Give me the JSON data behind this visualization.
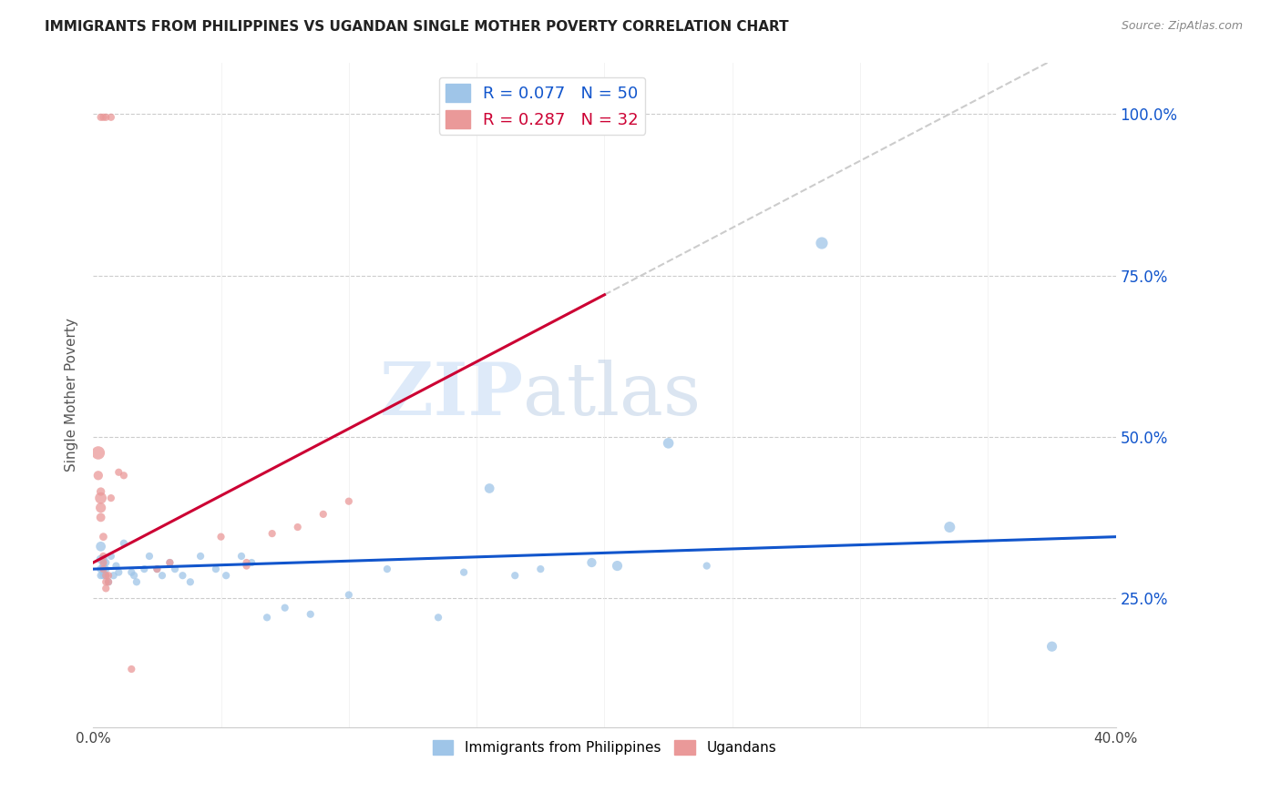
{
  "title": "IMMIGRANTS FROM PHILIPPINES VS UGANDAN SINGLE MOTHER POVERTY CORRELATION CHART",
  "source": "Source: ZipAtlas.com",
  "ylabel": "Single Mother Poverty",
  "ytick_labels": [
    "100.0%",
    "75.0%",
    "50.0%",
    "25.0%"
  ],
  "ytick_values": [
    1.0,
    0.75,
    0.5,
    0.25
  ],
  "xlim": [
    0.0,
    0.4
  ],
  "ylim": [
    0.05,
    1.08
  ],
  "blue_color": "#9fc5e8",
  "pink_color": "#ea9999",
  "blue_line_color": "#1155cc",
  "pink_line_color": "#cc0033",
  "watermark_zip": "ZIP",
  "watermark_atlas": "atlas",
  "legend_blue_r": "R = 0.077",
  "legend_blue_n": "N = 50",
  "legend_pink_r": "R = 0.287",
  "legend_pink_n": "N = 32",
  "blue_points": [
    [
      0.003,
      0.33
    ],
    [
      0.003,
      0.31
    ],
    [
      0.003,
      0.295
    ],
    [
      0.003,
      0.285
    ],
    [
      0.004,
      0.31
    ],
    [
      0.004,
      0.3
    ],
    [
      0.004,
      0.29
    ],
    [
      0.004,
      0.285
    ],
    [
      0.005,
      0.305
    ],
    [
      0.005,
      0.295
    ],
    [
      0.005,
      0.285
    ],
    [
      0.006,
      0.275
    ],
    [
      0.007,
      0.315
    ],
    [
      0.008,
      0.285
    ],
    [
      0.009,
      0.3
    ],
    [
      0.01,
      0.29
    ],
    [
      0.012,
      0.335
    ],
    [
      0.015,
      0.29
    ],
    [
      0.016,
      0.285
    ],
    [
      0.017,
      0.275
    ],
    [
      0.02,
      0.295
    ],
    [
      0.022,
      0.315
    ],
    [
      0.025,
      0.295
    ],
    [
      0.027,
      0.285
    ],
    [
      0.03,
      0.305
    ],
    [
      0.032,
      0.295
    ],
    [
      0.035,
      0.285
    ],
    [
      0.038,
      0.275
    ],
    [
      0.042,
      0.315
    ],
    [
      0.048,
      0.295
    ],
    [
      0.052,
      0.285
    ],
    [
      0.058,
      0.315
    ],
    [
      0.062,
      0.305
    ],
    [
      0.068,
      0.22
    ],
    [
      0.075,
      0.235
    ],
    [
      0.085,
      0.225
    ],
    [
      0.1,
      0.255
    ],
    [
      0.115,
      0.295
    ],
    [
      0.135,
      0.22
    ],
    [
      0.145,
      0.29
    ],
    [
      0.155,
      0.42
    ],
    [
      0.165,
      0.285
    ],
    [
      0.175,
      0.295
    ],
    [
      0.195,
      0.305
    ],
    [
      0.205,
      0.3
    ],
    [
      0.225,
      0.49
    ],
    [
      0.285,
      0.8
    ],
    [
      0.335,
      0.36
    ],
    [
      0.375,
      0.175
    ],
    [
      0.24,
      0.3
    ]
  ],
  "pink_points": [
    [
      0.003,
      0.995
    ],
    [
      0.004,
      0.995
    ],
    [
      0.005,
      0.995
    ],
    [
      0.007,
      0.995
    ],
    [
      0.002,
      0.475
    ],
    [
      0.002,
      0.44
    ],
    [
      0.003,
      0.415
    ],
    [
      0.003,
      0.405
    ],
    [
      0.003,
      0.39
    ],
    [
      0.003,
      0.375
    ],
    [
      0.004,
      0.345
    ],
    [
      0.004,
      0.315
    ],
    [
      0.004,
      0.305
    ],
    [
      0.004,
      0.295
    ],
    [
      0.005,
      0.285
    ],
    [
      0.005,
      0.275
    ],
    [
      0.005,
      0.265
    ],
    [
      0.006,
      0.275
    ],
    [
      0.006,
      0.285
    ],
    [
      0.007,
      0.405
    ],
    [
      0.01,
      0.445
    ],
    [
      0.012,
      0.44
    ],
    [
      0.015,
      0.14
    ],
    [
      0.025,
      0.295
    ],
    [
      0.03,
      0.305
    ],
    [
      0.05,
      0.345
    ],
    [
      0.06,
      0.305
    ],
    [
      0.06,
      0.3
    ],
    [
      0.07,
      0.35
    ],
    [
      0.08,
      0.36
    ],
    [
      0.09,
      0.38
    ],
    [
      0.1,
      0.4
    ]
  ],
  "blue_sizes": [
    60,
    50,
    40,
    35,
    45,
    40,
    35,
    35,
    35,
    35,
    35,
    35,
    35,
    35,
    35,
    35,
    35,
    35,
    35,
    35,
    35,
    35,
    35,
    35,
    35,
    35,
    35,
    35,
    35,
    35,
    35,
    35,
    35,
    35,
    35,
    35,
    35,
    35,
    35,
    35,
    60,
    35,
    35,
    55,
    65,
    70,
    90,
    75,
    65,
    35
  ],
  "pink_sizes": [
    35,
    35,
    35,
    35,
    110,
    55,
    45,
    85,
    65,
    50,
    40,
    35,
    35,
    35,
    35,
    35,
    35,
    35,
    35,
    35,
    35,
    35,
    35,
    35,
    35,
    35,
    35,
    35,
    35,
    35,
    35,
    35
  ]
}
